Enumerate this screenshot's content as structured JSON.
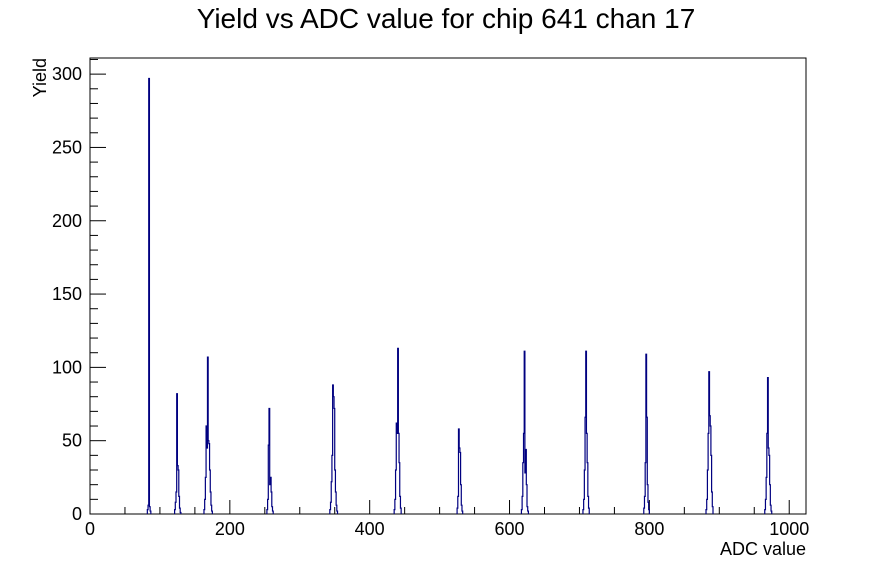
{
  "chart_data": {
    "type": "bar",
    "title": "Yield vs ADC value for chip 641 chan 17",
    "xlabel": "ADC value",
    "ylabel": "Yield",
    "xlim": [
      0,
      1024
    ],
    "ylim": [
      0,
      311
    ],
    "xticks": [
      0,
      200,
      400,
      600,
      800,
      1000
    ],
    "yticks": [
      0,
      50,
      100,
      150,
      200,
      250,
      300
    ],
    "grid": false,
    "legend": "none",
    "line_color": "#000080",
    "peaks": [
      {
        "center": 84,
        "bins": [
          [
            82,
            3
          ],
          [
            83,
            6
          ],
          [
            84,
            297
          ],
          [
            85,
            5
          ],
          [
            86,
            2
          ]
        ]
      },
      {
        "center": 125,
        "bins": [
          [
            121,
            3
          ],
          [
            122,
            8
          ],
          [
            123,
            15
          ],
          [
            124,
            82
          ],
          [
            125,
            33
          ],
          [
            126,
            30
          ],
          [
            127,
            12
          ],
          [
            128,
            4
          ],
          [
            129,
            1
          ]
        ]
      },
      {
        "center": 168,
        "bins": [
          [
            163,
            3
          ],
          [
            164,
            10
          ],
          [
            165,
            25
          ],
          [
            166,
            60
          ],
          [
            167,
            45
          ],
          [
            168,
            107
          ],
          [
            169,
            50
          ],
          [
            170,
            48
          ],
          [
            171,
            30
          ],
          [
            172,
            15
          ],
          [
            173,
            6
          ],
          [
            174,
            2
          ]
        ]
      },
      {
        "center": 257,
        "bins": [
          [
            253,
            3
          ],
          [
            254,
            10
          ],
          [
            255,
            47
          ],
          [
            256,
            72
          ],
          [
            257,
            20
          ],
          [
            258,
            25
          ],
          [
            259,
            15
          ],
          [
            260,
            5
          ],
          [
            261,
            2
          ]
        ]
      },
      {
        "center": 348,
        "bins": [
          [
            343,
            3
          ],
          [
            344,
            8
          ],
          [
            345,
            22
          ],
          [
            346,
            40
          ],
          [
            347,
            88
          ],
          [
            348,
            80
          ],
          [
            349,
            72
          ],
          [
            350,
            30
          ],
          [
            351,
            15
          ],
          [
            352,
            6
          ],
          [
            353,
            2
          ]
        ]
      },
      {
        "center": 440,
        "bins": [
          [
            435,
            3
          ],
          [
            436,
            10
          ],
          [
            437,
            30
          ],
          [
            438,
            62
          ],
          [
            439,
            55
          ],
          [
            440,
            113
          ],
          [
            441,
            55
          ],
          [
            442,
            35
          ],
          [
            443,
            12
          ],
          [
            444,
            4
          ]
        ]
      },
      {
        "center": 529,
        "bins": [
          [
            525,
            4
          ],
          [
            526,
            12
          ],
          [
            527,
            58
          ],
          [
            528,
            45
          ],
          [
            529,
            42
          ],
          [
            530,
            20
          ],
          [
            531,
            6
          ],
          [
            532,
            2
          ]
        ]
      },
      {
        "center": 622,
        "bins": [
          [
            617,
            3
          ],
          [
            618,
            12
          ],
          [
            619,
            35
          ],
          [
            620,
            55
          ],
          [
            621,
            111
          ],
          [
            622,
            28
          ],
          [
            623,
            44
          ],
          [
            624,
            20
          ],
          [
            625,
            5
          ],
          [
            626,
            2
          ]
        ]
      },
      {
        "center": 710,
        "bins": [
          [
            705,
            3
          ],
          [
            706,
            10
          ],
          [
            707,
            30
          ],
          [
            708,
            66
          ],
          [
            709,
            111
          ],
          [
            710,
            55
          ],
          [
            711,
            35
          ],
          [
            712,
            12
          ],
          [
            713,
            4
          ]
        ]
      },
      {
        "center": 797,
        "bins": [
          [
            792,
            4
          ],
          [
            793,
            12
          ],
          [
            794,
            35
          ],
          [
            795,
            109
          ],
          [
            796,
            66
          ],
          [
            797,
            20
          ],
          [
            798,
            8
          ],
          [
            799,
            3
          ]
        ]
      },
      {
        "center": 886,
        "bins": [
          [
            881,
            3
          ],
          [
            882,
            10
          ],
          [
            883,
            30
          ],
          [
            884,
            55
          ],
          [
            885,
            97
          ],
          [
            886,
            67
          ],
          [
            887,
            60
          ],
          [
            888,
            40
          ],
          [
            889,
            15
          ],
          [
            890,
            5
          ]
        ]
      },
      {
        "center": 970,
        "bins": [
          [
            965,
            3
          ],
          [
            966,
            10
          ],
          [
            967,
            25
          ],
          [
            968,
            55
          ],
          [
            969,
            93
          ],
          [
            970,
            45
          ],
          [
            971,
            40
          ],
          [
            972,
            20
          ],
          [
            973,
            6
          ],
          [
            974,
            2
          ]
        ]
      }
    ]
  }
}
